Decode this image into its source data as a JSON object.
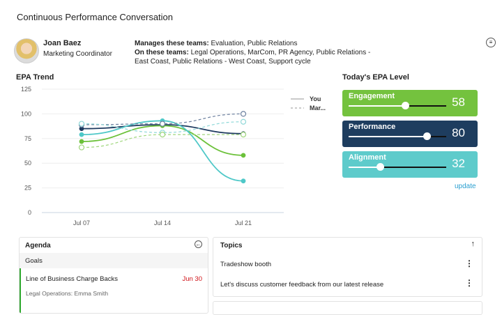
{
  "title": "Continuous Performance Conversation",
  "profile": {
    "name": "Joan Baez",
    "role": "Marketing Coordinator",
    "manages_label": "Manages these teams:",
    "manages": " Evaluation, Public Relations",
    "on_label": "On these teams:",
    "on": " Legal Operations, MarCom, PR Agency, Public Relations - East Coast, Public Relations - West Coast, Support cycle"
  },
  "menu_icon": "menu-circle-icon",
  "chart_data": {
    "type": "line",
    "title": "EPA Trend",
    "categories": [
      "Jul 07",
      "Jul 14",
      "Jul 21"
    ],
    "ylim": [
      0,
      125
    ],
    "yticks": [
      0,
      25,
      50,
      75,
      100,
      125
    ],
    "legend": [
      {
        "name": "You",
        "style": "solid"
      },
      {
        "name": "Mar...",
        "style": "dashed"
      }
    ],
    "legend_position": "right",
    "grid": true,
    "series": [
      {
        "color": "#1e3a5f",
        "dashed": false,
        "values": [
          85,
          89,
          80
        ]
      },
      {
        "color": "#6cc13a",
        "dashed": false,
        "values": [
          72,
          88,
          58
        ]
      },
      {
        "color": "#4fc8c8",
        "dashed": false,
        "values": [
          79,
          93,
          32
        ]
      },
      {
        "color": "#6b7f9e",
        "dashed": true,
        "values": [
          89,
          90,
          100
        ]
      },
      {
        "color": "#8fd8d8",
        "dashed": true,
        "values": [
          90,
          81,
          92
        ]
      },
      {
        "color": "#9fd67c",
        "dashed": true,
        "values": [
          66,
          79,
          79
        ]
      }
    ]
  },
  "epa": {
    "title": "Today's EPA Level",
    "items": [
      {
        "label": "Engagement",
        "value": "58",
        "pct": 58,
        "color": "#74c23e"
      },
      {
        "label": "Performance",
        "value": "80",
        "pct": 80,
        "color": "#1e3d5f"
      },
      {
        "label": "Alignment",
        "value": "32",
        "pct": 32,
        "color": "#5ecbcb"
      }
    ],
    "update": "update"
  },
  "agenda": {
    "title": "Agenda",
    "section": "Goals",
    "goal": "Line of Business Charge Backs",
    "due": "Jun 30",
    "sub": "Legal Operations: Emma Smith"
  },
  "topics": {
    "title": "Topics",
    "items": [
      "Tradeshow booth",
      "Let's discuss customer feedback from our latest release"
    ]
  }
}
